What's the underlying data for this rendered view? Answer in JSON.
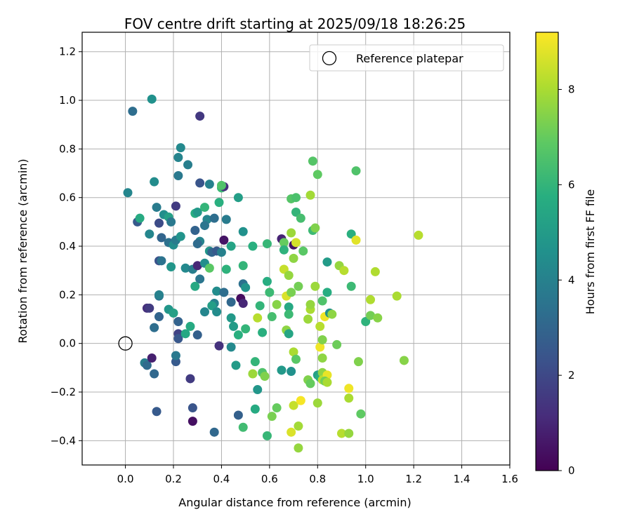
{
  "chart_data": {
    "type": "scatter",
    "title": "FOV centre drift starting at 2025/09/18 18:26:25",
    "xlabel": "Angular distance from reference (arcmin)",
    "ylabel": "Rotation from reference (arcmin)",
    "xlim": [
      -0.18,
      1.6
    ],
    "ylim": [
      -0.5,
      1.28
    ],
    "grid": true,
    "x_ticks": [
      0.0,
      0.2,
      0.4,
      0.6,
      0.8,
      1.0,
      1.2,
      1.4,
      1.6
    ],
    "x_tick_labels": [
      "0.0",
      "0.2",
      "0.4",
      "0.6",
      "0.8",
      "1.0",
      "1.2",
      "1.4",
      "1.6"
    ],
    "y_ticks": [
      -0.4,
      -0.2,
      0.0,
      0.2,
      0.4,
      0.6,
      0.8,
      1.0,
      1.2
    ],
    "y_tick_labels": [
      "−0.4",
      "−0.2",
      "0.0",
      "0.2",
      "0.4",
      "0.6",
      "0.8",
      "1.0",
      "1.2"
    ],
    "legend": {
      "placement": "top-right",
      "entries": [
        "Reference platepar"
      ]
    },
    "reference_point": {
      "x": 0.0,
      "y": 0.0,
      "label": "Reference platepar"
    },
    "colorbar": {
      "label": "Hours from first FF file",
      "range": [
        0,
        9.2
      ],
      "ticks": [
        0,
        2,
        4,
        6,
        8
      ],
      "tick_labels": [
        "0",
        "2",
        "4",
        "6",
        "8"
      ],
      "colormap": "viridis"
    },
    "points": [
      {
        "x": 0.03,
        "y": 0.955,
        "c": 3.3
      },
      {
        "x": 0.11,
        "y": 1.005,
        "c": 4.6
      },
      {
        "x": 0.31,
        "y": 0.935,
        "c": 1.5
      },
      {
        "x": 0.01,
        "y": 0.62,
        "c": 4.2
      },
      {
        "x": 0.12,
        "y": 0.665,
        "c": 4.4
      },
      {
        "x": 0.23,
        "y": 0.805,
        "c": 4.3
      },
      {
        "x": 0.22,
        "y": 0.765,
        "c": 4.1
      },
      {
        "x": 0.26,
        "y": 0.735,
        "c": 3.9
      },
      {
        "x": 0.22,
        "y": 0.69,
        "c": 3.7
      },
      {
        "x": 0.31,
        "y": 0.66,
        "c": 2.4
      },
      {
        "x": 0.35,
        "y": 0.655,
        "c": 4.0
      },
      {
        "x": 0.4,
        "y": 0.64,
        "c": 6.2
      },
      {
        "x": 0.41,
        "y": 0.645,
        "c": 1.2
      },
      {
        "x": 0.4,
        "y": 0.65,
        "c": 6.6
      },
      {
        "x": 0.39,
        "y": 0.58,
        "c": 5.8
      },
      {
        "x": 0.47,
        "y": 0.6,
        "c": 5.1
      },
      {
        "x": 0.05,
        "y": 0.5,
        "c": 2.6
      },
      {
        "x": 0.06,
        "y": 0.515,
        "c": 5.6
      },
      {
        "x": 0.13,
        "y": 0.56,
        "c": 3.8
      },
      {
        "x": 0.16,
        "y": 0.53,
        "c": 4.5
      },
      {
        "x": 0.18,
        "y": 0.52,
        "c": 5.2
      },
      {
        "x": 0.21,
        "y": 0.565,
        "c": 1.6
      },
      {
        "x": 0.14,
        "y": 0.495,
        "c": 2.1
      },
      {
        "x": 0.19,
        "y": 0.5,
        "c": 3.7
      },
      {
        "x": 0.1,
        "y": 0.45,
        "c": 4.2
      },
      {
        "x": 0.15,
        "y": 0.435,
        "c": 3.0
      },
      {
        "x": 0.18,
        "y": 0.415,
        "c": 3.4
      },
      {
        "x": 0.2,
        "y": 0.405,
        "c": 4.4
      },
      {
        "x": 0.21,
        "y": 0.425,
        "c": 3.8
      },
      {
        "x": 0.23,
        "y": 0.44,
        "c": 4.7
      },
      {
        "x": 0.29,
        "y": 0.535,
        "c": 5.7
      },
      {
        "x": 0.3,
        "y": 0.54,
        "c": 4.9
      },
      {
        "x": 0.33,
        "y": 0.56,
        "c": 6.0
      },
      {
        "x": 0.34,
        "y": 0.51,
        "c": 4.2
      },
      {
        "x": 0.37,
        "y": 0.515,
        "c": 3.3
      },
      {
        "x": 0.42,
        "y": 0.51,
        "c": 3.8
      },
      {
        "x": 0.33,
        "y": 0.485,
        "c": 3.6
      },
      {
        "x": 0.29,
        "y": 0.465,
        "c": 2.9
      },
      {
        "x": 0.31,
        "y": 0.42,
        "c": 4.1
      },
      {
        "x": 0.3,
        "y": 0.41,
        "c": 3.2
      },
      {
        "x": 0.35,
        "y": 0.38,
        "c": 4.8
      },
      {
        "x": 0.36,
        "y": 0.375,
        "c": 3.0
      },
      {
        "x": 0.38,
        "y": 0.38,
        "c": 2.6
      },
      {
        "x": 0.4,
        "y": 0.375,
        "c": 4.0
      },
      {
        "x": 0.44,
        "y": 0.4,
        "c": 5.3
      },
      {
        "x": 0.41,
        "y": 0.425,
        "c": 0.5
      },
      {
        "x": 0.49,
        "y": 0.46,
        "c": 4.6
      },
      {
        "x": 0.14,
        "y": 0.34,
        "c": 2.3
      },
      {
        "x": 0.15,
        "y": 0.34,
        "c": 3.5
      },
      {
        "x": 0.19,
        "y": 0.315,
        "c": 4.8
      },
      {
        "x": 0.25,
        "y": 0.31,
        "c": 4.3
      },
      {
        "x": 0.28,
        "y": 0.305,
        "c": 3.9
      },
      {
        "x": 0.3,
        "y": 0.32,
        "c": 1.0
      },
      {
        "x": 0.33,
        "y": 0.33,
        "c": 4.5
      },
      {
        "x": 0.35,
        "y": 0.31,
        "c": 6.8
      },
      {
        "x": 0.42,
        "y": 0.305,
        "c": 5.9
      },
      {
        "x": 0.31,
        "y": 0.265,
        "c": 3.6
      },
      {
        "x": 0.29,
        "y": 0.235,
        "c": 5.5
      },
      {
        "x": 0.38,
        "y": 0.215,
        "c": 4.4
      },
      {
        "x": 0.41,
        "y": 0.21,
        "c": 3.3
      },
      {
        "x": 0.49,
        "y": 0.245,
        "c": 3.4
      },
      {
        "x": 0.5,
        "y": 0.23,
        "c": 4.7
      },
      {
        "x": 0.49,
        "y": 0.32,
        "c": 6.0
      },
      {
        "x": 0.14,
        "y": 0.195,
        "c": 3.5
      },
      {
        "x": 0.14,
        "y": 0.2,
        "c": 4.0
      },
      {
        "x": 0.18,
        "y": 0.14,
        "c": 4.8
      },
      {
        "x": 0.2,
        "y": 0.125,
        "c": 5.2
      },
      {
        "x": 0.09,
        "y": 0.145,
        "c": 1.2
      },
      {
        "x": 0.1,
        "y": 0.145,
        "c": 1.6
      },
      {
        "x": 0.14,
        "y": 0.11,
        "c": 3.0
      },
      {
        "x": 0.12,
        "y": 0.065,
        "c": 3.3
      },
      {
        "x": 0.22,
        "y": 0.09,
        "c": 2.9
      },
      {
        "x": 0.27,
        "y": 0.07,
        "c": 5.6
      },
      {
        "x": 0.33,
        "y": 0.13,
        "c": 4.2
      },
      {
        "x": 0.37,
        "y": 0.165,
        "c": 4.0
      },
      {
        "x": 0.36,
        "y": 0.155,
        "c": 5.1
      },
      {
        "x": 0.38,
        "y": 0.13,
        "c": 4.4
      },
      {
        "x": 0.44,
        "y": 0.17,
        "c": 3.1
      },
      {
        "x": 0.44,
        "y": 0.105,
        "c": 4.9
      },
      {
        "x": 0.45,
        "y": 0.07,
        "c": 5.0
      },
      {
        "x": 0.48,
        "y": 0.185,
        "c": 0.3
      },
      {
        "x": 0.49,
        "y": 0.165,
        "c": 1.0
      },
      {
        "x": 0.5,
        "y": 0.06,
        "c": 6.0
      },
      {
        "x": 0.47,
        "y": 0.035,
        "c": 5.8
      },
      {
        "x": 0.22,
        "y": 0.04,
        "c": 1.8
      },
      {
        "x": 0.22,
        "y": 0.02,
        "c": 2.5
      },
      {
        "x": 0.25,
        "y": 0.04,
        "c": 5.5
      },
      {
        "x": 0.3,
        "y": 0.035,
        "c": 2.8
      },
      {
        "x": 0.39,
        "y": -0.01,
        "c": 1.3
      },
      {
        "x": 0.44,
        "y": -0.015,
        "c": 4.3
      },
      {
        "x": 0.08,
        "y": -0.08,
        "c": 3.9
      },
      {
        "x": 0.09,
        "y": -0.09,
        "c": 3.2
      },
      {
        "x": 0.11,
        "y": -0.06,
        "c": 0.8
      },
      {
        "x": 0.12,
        "y": -0.125,
        "c": 3.1
      },
      {
        "x": 0.21,
        "y": -0.075,
        "c": 2.6
      },
      {
        "x": 0.21,
        "y": -0.05,
        "c": 3.7
      },
      {
        "x": 0.27,
        "y": -0.145,
        "c": 1.6
      },
      {
        "x": 0.46,
        "y": -0.09,
        "c": 5.0
      },
      {
        "x": 0.13,
        "y": -0.28,
        "c": 2.6
      },
      {
        "x": 0.28,
        "y": -0.265,
        "c": 2.4
      },
      {
        "x": 0.28,
        "y": -0.32,
        "c": 0.4
      },
      {
        "x": 0.37,
        "y": -0.365,
        "c": 3.1
      },
      {
        "x": 0.47,
        "y": -0.295,
        "c": 2.8
      },
      {
        "x": 0.49,
        "y": -0.345,
        "c": 6.3
      },
      {
        "x": 0.54,
        "y": -0.27,
        "c": 5.6
      },
      {
        "x": 0.53,
        "y": -0.125,
        "c": 7.8
      },
      {
        "x": 0.55,
        "y": -0.19,
        "c": 4.8
      },
      {
        "x": 0.54,
        "y": -0.075,
        "c": 6.0
      },
      {
        "x": 0.57,
        "y": -0.12,
        "c": 6.6
      },
      {
        "x": 0.58,
        "y": -0.135,
        "c": 7.4
      },
      {
        "x": 0.59,
        "y": -0.38,
        "c": 6.1
      },
      {
        "x": 0.61,
        "y": -0.3,
        "c": 7.3
      },
      {
        "x": 0.63,
        "y": -0.265,
        "c": 7.0
      },
      {
        "x": 0.65,
        "y": -0.11,
        "c": 4.9
      },
      {
        "x": 0.69,
        "y": -0.115,
        "c": 4.6
      },
      {
        "x": 0.69,
        "y": -0.365,
        "c": 8.7
      },
      {
        "x": 0.7,
        "y": -0.255,
        "c": 8.4
      },
      {
        "x": 0.72,
        "y": -0.34,
        "c": 7.9
      },
      {
        "x": 0.72,
        "y": -0.43,
        "c": 7.7
      },
      {
        "x": 0.73,
        "y": -0.235,
        "c": 9.1
      },
      {
        "x": 0.76,
        "y": -0.15,
        "c": 7.4
      },
      {
        "x": 0.77,
        "y": -0.165,
        "c": 7.0
      },
      {
        "x": 0.8,
        "y": -0.245,
        "c": 7.8
      },
      {
        "x": 0.8,
        "y": -0.13,
        "c": 5.2
      },
      {
        "x": 0.81,
        "y": -0.14,
        "c": 5.7
      },
      {
        "x": 0.82,
        "y": -0.12,
        "c": 7.6
      },
      {
        "x": 0.82,
        "y": -0.15,
        "c": 8.2
      },
      {
        "x": 0.84,
        "y": -0.13,
        "c": 8.9
      },
      {
        "x": 0.83,
        "y": -0.155,
        "c": 7.2
      },
      {
        "x": 0.84,
        "y": -0.16,
        "c": 8.0
      },
      {
        "x": 0.9,
        "y": -0.37,
        "c": 8.2
      },
      {
        "x": 0.93,
        "y": -0.185,
        "c": 9.0
      },
      {
        "x": 0.93,
        "y": -0.225,
        "c": 8.0
      },
      {
        "x": 0.93,
        "y": -0.37,
        "c": 7.7
      },
      {
        "x": 0.97,
        "y": -0.075,
        "c": 7.4
      },
      {
        "x": 0.98,
        "y": -0.29,
        "c": 6.9
      },
      {
        "x": 0.7,
        "y": -0.035,
        "c": 8.0
      },
      {
        "x": 0.71,
        "y": -0.065,
        "c": 6.8
      },
      {
        "x": 0.81,
        "y": -0.015,
        "c": 9.0
      },
      {
        "x": 0.82,
        "y": 0.015,
        "c": 7.4
      },
      {
        "x": 0.82,
        "y": -0.06,
        "c": 7.6
      },
      {
        "x": 0.88,
        "y": -0.005,
        "c": 7.1
      },
      {
        "x": 0.53,
        "y": 0.4,
        "c": 5.8
      },
      {
        "x": 0.56,
        "y": 0.155,
        "c": 6.0
      },
      {
        "x": 0.55,
        "y": 0.105,
        "c": 8.2
      },
      {
        "x": 0.57,
        "y": 0.045,
        "c": 5.8
      },
      {
        "x": 0.59,
        "y": 0.255,
        "c": 5.7
      },
      {
        "x": 0.59,
        "y": 0.41,
        "c": 6.1
      },
      {
        "x": 0.6,
        "y": 0.21,
        "c": 6.2
      },
      {
        "x": 0.61,
        "y": 0.11,
        "c": 6.4
      },
      {
        "x": 0.63,
        "y": 0.16,
        "c": 7.5
      },
      {
        "x": 0.65,
        "y": 0.43,
        "c": 0.9
      },
      {
        "x": 0.66,
        "y": 0.415,
        "c": 7.0
      },
      {
        "x": 0.66,
        "y": 0.385,
        "c": 5.9
      },
      {
        "x": 0.66,
        "y": 0.305,
        "c": 8.4
      },
      {
        "x": 0.67,
        "y": 0.195,
        "c": 8.7
      },
      {
        "x": 0.68,
        "y": 0.28,
        "c": 7.7
      },
      {
        "x": 0.67,
        "y": 0.055,
        "c": 7.6
      },
      {
        "x": 0.68,
        "y": 0.04,
        "c": 5.4
      },
      {
        "x": 0.68,
        "y": 0.15,
        "c": 5.5
      },
      {
        "x": 0.68,
        "y": 0.12,
        "c": 6.2
      },
      {
        "x": 0.69,
        "y": 0.21,
        "c": 7.3
      },
      {
        "x": 0.69,
        "y": 0.455,
        "c": 7.8
      },
      {
        "x": 0.69,
        "y": 0.595,
        "c": 6.7
      },
      {
        "x": 0.7,
        "y": 0.35,
        "c": 7.6
      },
      {
        "x": 0.7,
        "y": 0.405,
        "c": 0.5
      },
      {
        "x": 0.71,
        "y": 0.415,
        "c": 8.6
      },
      {
        "x": 0.71,
        "y": 0.6,
        "c": 6.5
      },
      {
        "x": 0.71,
        "y": 0.54,
        "c": 6.0
      },
      {
        "x": 0.72,
        "y": 0.235,
        "c": 7.2
      },
      {
        "x": 0.73,
        "y": 0.515,
        "c": 6.4
      },
      {
        "x": 0.74,
        "y": 0.38,
        "c": 6.8
      },
      {
        "x": 0.76,
        "y": 0.1,
        "c": 7.8
      },
      {
        "x": 0.77,
        "y": 0.14,
        "c": 8.0
      },
      {
        "x": 0.77,
        "y": 0.16,
        "c": 7.7
      },
      {
        "x": 0.77,
        "y": 0.61,
        "c": 7.9
      },
      {
        "x": 0.78,
        "y": 0.75,
        "c": 6.7
      },
      {
        "x": 0.78,
        "y": 0.465,
        "c": 6.2
      },
      {
        "x": 0.79,
        "y": 0.475,
        "c": 7.4
      },
      {
        "x": 0.79,
        "y": 0.235,
        "c": 7.8
      },
      {
        "x": 0.8,
        "y": 0.695,
        "c": 6.9
      },
      {
        "x": 0.81,
        "y": 0.07,
        "c": 8.2
      },
      {
        "x": 0.82,
        "y": 0.175,
        "c": 6.6
      },
      {
        "x": 0.83,
        "y": 0.11,
        "c": 9.0
      },
      {
        "x": 0.84,
        "y": 0.21,
        "c": 5.7
      },
      {
        "x": 0.84,
        "y": 0.335,
        "c": 5.0
      },
      {
        "x": 0.85,
        "y": 0.125,
        "c": 4.6
      },
      {
        "x": 0.86,
        "y": 0.12,
        "c": 7.6
      },
      {
        "x": 0.89,
        "y": 0.32,
        "c": 7.7
      },
      {
        "x": 0.91,
        "y": 0.3,
        "c": 8.2
      },
      {
        "x": 0.94,
        "y": 0.45,
        "c": 5.8
      },
      {
        "x": 0.94,
        "y": 0.235,
        "c": 6.2
      },
      {
        "x": 0.96,
        "y": 0.71,
        "c": 6.6
      },
      {
        "x": 0.96,
        "y": 0.425,
        "c": 8.8
      },
      {
        "x": 1.0,
        "y": 0.09,
        "c": 5.9
      },
      {
        "x": 1.02,
        "y": 0.18,
        "c": 8.1
      },
      {
        "x": 1.02,
        "y": 0.115,
        "c": 7.2
      },
      {
        "x": 1.04,
        "y": 0.295,
        "c": 8.1
      },
      {
        "x": 1.05,
        "y": 0.105,
        "c": 7.5
      },
      {
        "x": 1.13,
        "y": 0.195,
        "c": 8.0
      },
      {
        "x": 1.16,
        "y": -0.07,
        "c": 7.5
      },
      {
        "x": 1.22,
        "y": 0.445,
        "c": 8.2
      }
    ]
  }
}
